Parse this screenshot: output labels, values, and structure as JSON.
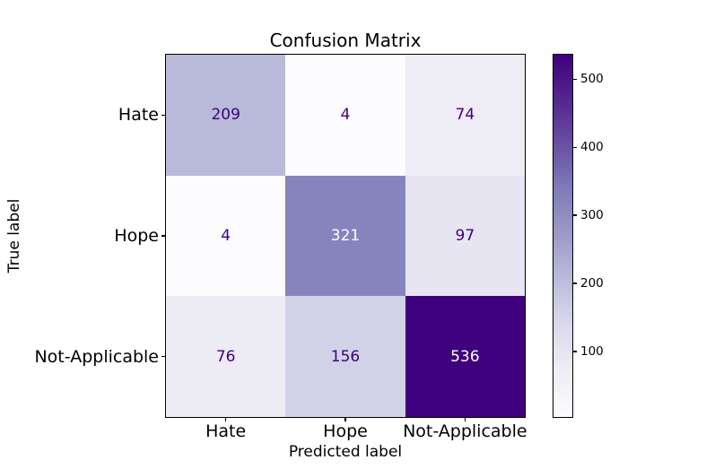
{
  "chart_data": {
    "type": "heatmap",
    "title": "Confusion Matrix",
    "xlabel": "Predicted label",
    "ylabel": "True label",
    "x_tick_labels": [
      "Hate",
      "Hope",
      "Not-Applicable"
    ],
    "y_tick_labels": [
      "Hate",
      "Hope",
      "Not-Applicable"
    ],
    "matrix": [
      [
        209,
        4,
        74
      ],
      [
        4,
        321,
        97
      ],
      [
        76,
        156,
        536
      ]
    ],
    "cell_colors": [
      [
        "#b9bada",
        "#fcfbfd",
        "#eeecf4"
      ],
      [
        "#fcfbfd",
        "#8784bd",
        "#e7e5f1"
      ],
      [
        "#edebf4",
        "#d1d2e7",
        "#3f007d"
      ]
    ],
    "cell_text_colors": [
      [
        "#3f007d",
        "#3f007d",
        "#3f007d"
      ],
      [
        "#3f007d",
        "#ffffff",
        "#3f007d"
      ],
      [
        "#3f007d",
        "#3f007d",
        "#ffffff"
      ]
    ],
    "colormap": "Purples",
    "axis_color": "#000000",
    "background_color": "#ffffff",
    "legend_position": "right-colorbar",
    "grid": false,
    "colorbar": {
      "vmin": 4,
      "vmax": 536,
      "tick_values": [
        100,
        200,
        300,
        400,
        500
      ],
      "tick_labels": [
        "100",
        "200",
        "300",
        "400",
        "500"
      ],
      "gradient_stops": [
        "#fcfbfd",
        "#efedf5",
        "#dadaeb",
        "#bcbddc",
        "#9e9ac8",
        "#807dba",
        "#6a51a3",
        "#54278f",
        "#3f007d"
      ]
    }
  }
}
